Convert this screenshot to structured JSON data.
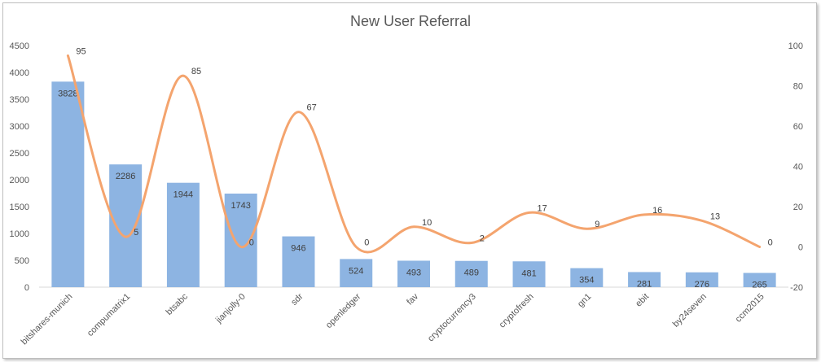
{
  "chart_data": {
    "type": "bar",
    "title": "New User Referral",
    "categories": [
      "bitshares-munich",
      "compumatrix1",
      "btsabc",
      "jianjolly-0",
      "sdr",
      "openledger",
      "fav",
      "cryptocurrency3",
      "cryptofresh",
      "gn1",
      "ebit",
      "by24seven",
      "ccm2015"
    ],
    "series": [
      {
        "type": "bar",
        "axis": "left",
        "values": [
          3828,
          2286,
          1944,
          1743,
          946,
          524,
          493,
          489,
          481,
          354,
          281,
          276,
          265
        ]
      },
      {
        "type": "line",
        "axis": "right",
        "values": [
          95,
          5,
          85,
          0,
          67,
          0,
          10,
          2,
          17,
          9,
          16,
          13,
          0
        ]
      }
    ],
    "y_left": {
      "min": 0,
      "max": 4500,
      "ticks": [
        0,
        500,
        1000,
        1500,
        2000,
        2500,
        3000,
        3500,
        4000,
        4500
      ]
    },
    "y_right": {
      "min": -20,
      "max": 100,
      "ticks": [
        -20,
        0,
        20,
        40,
        60,
        80,
        100
      ]
    },
    "grid": false,
    "legend": "none",
    "colors": {
      "bar": "#8db4e2",
      "line": "#f4a46e",
      "axis_text": "#595959",
      "label": "#404040"
    }
  }
}
